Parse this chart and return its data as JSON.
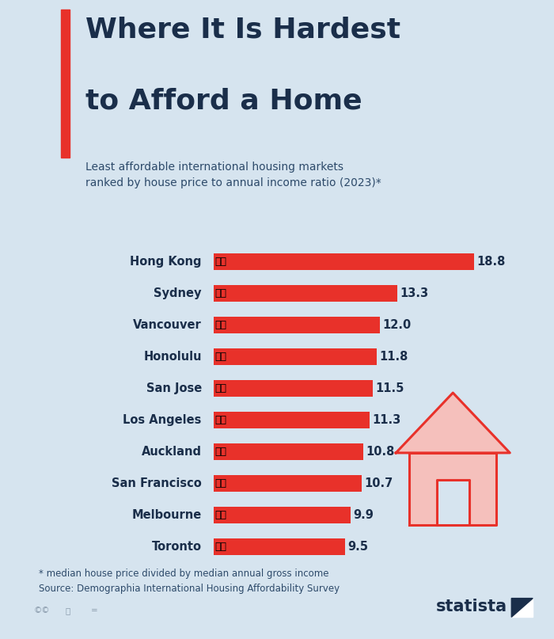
{
  "title_line1": "Where It Is Hardest",
  "title_line2": "to Afford a Home",
  "subtitle": "Least affordable international housing markets\nranked by house price to annual income ratio (2023)*",
  "footnote": "* median house price divided by median annual gross income\nSource: Demographia International Housing Affordability Survey",
  "cities": [
    "Hong Kong",
    "Sydney",
    "Vancouver",
    "Honolulu",
    "San Jose",
    "Los Angeles",
    "Auckland",
    "San Francisco",
    "Melbourne",
    "Toronto"
  ],
  "flags": [
    "🇨🇳",
    "🇦🇺",
    "🇨🇦",
    "🇺🇸",
    "🇺🇸",
    "🇺🇸",
    "🇳🇿",
    "🇺🇸",
    "🇦🇺",
    "🇨🇦"
  ],
  "values": [
    18.8,
    13.3,
    12.0,
    11.8,
    11.5,
    11.3,
    10.8,
    10.7,
    9.9,
    9.5
  ],
  "bar_color": "#e8312a",
  "bg_color": "#d6e4ef",
  "title_color": "#1a2e4a",
  "subtitle_color": "#2d4a6a",
  "label_color": "#1a2e4a",
  "value_color": "#1a2e4a",
  "footnote_color": "#2d4a6a",
  "accent_color": "#e8312a",
  "house_fill": "#f5c0bc",
  "house_outline": "#e8312a",
  "statista_color": "#1a2e4a",
  "xlim": [
    0,
    21
  ],
  "bar_height": 0.52,
  "figsize": [
    7.0,
    8.07
  ],
  "dpi": 100
}
